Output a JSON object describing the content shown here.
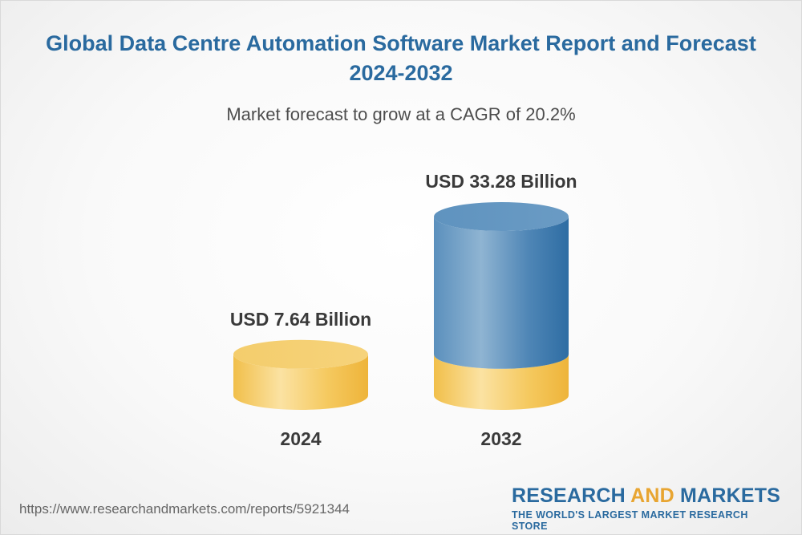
{
  "title": "Global Data Centre Automation Software Market Report and Forecast 2024-2032",
  "subtitle": "Market forecast to grow at a CAGR of 20.2%",
  "source_url": "https://www.researchandmarkets.com/reports/5921344",
  "brand": {
    "name_part1": "RESEARCH ",
    "name_part2": "AND",
    "name_part3": " MARKETS",
    "tagline": "THE WORLD'S LARGEST MARKET RESEARCH STORE"
  },
  "colors": {
    "title": "#2a6a9f",
    "bar_gold": "#f4c65a",
    "bar_blue": "#3f7fb1",
    "accent": "#e8a531"
  },
  "chart_data": {
    "type": "bar",
    "title": "Global Data Centre Automation Software Market Report and Forecast 2024-2032",
    "subtitle": "Market forecast to grow at a CAGR of 20.2%",
    "categories": [
      "2024",
      "2032"
    ],
    "values": [
      7.64,
      33.28
    ],
    "unit": "USD Billion",
    "value_labels": [
      "USD 7.64 Billion",
      "USD 33.28 Billion"
    ],
    "cagr_percent": 20.2
  }
}
